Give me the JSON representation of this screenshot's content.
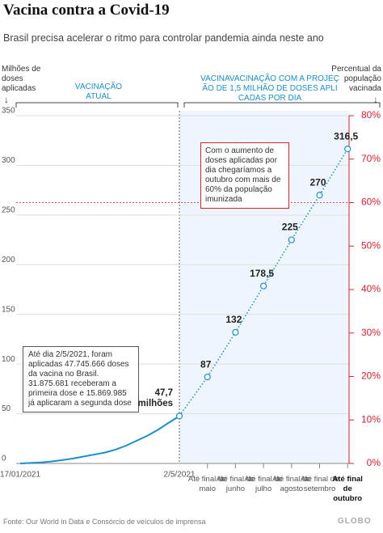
{
  "chart_data": {
    "type": "line",
    "title": "Vacina contra a Covid-19",
    "subtitle": "Brasil precisa acelerar o ritmo para controlar pandemia ainda neste ano",
    "y_label": "Milhões de doses aplicadas",
    "y2_label": "Percentual da população vacinada",
    "sections": [
      "VACINAÇÃO ATUAL",
      "VACINAVACINAÇÃO COM A PROJEÇÃO DE 1,5 MILHÃO DE DOSES APLICADAS POR DIA"
    ],
    "categories": [
      "17/01/2021",
      null,
      null,
      null,
      null,
      null,
      null,
      null,
      null,
      null,
      null,
      null,
      null,
      null,
      null,
      "2/5/2021",
      "Até final de maio",
      "Até final de junho",
      "Até final de julho",
      "Até final de agosto",
      "Até final de setembro",
      "Até final de outubro"
    ],
    "series": [
      {
        "color": "#1a8fc9",
        "style": "solid",
        "values": [
          0,
          0.5,
          1,
          2,
          3.5,
          5,
          7,
          9,
          11,
          14,
          18,
          23,
          28,
          34,
          41,
          47.7,
          null,
          null,
          null,
          null,
          null,
          null
        ]
      },
      {
        "color": "#1a8fc9",
        "style": "dotted",
        "values": [
          null,
          null,
          null,
          null,
          null,
          null,
          null,
          null,
          null,
          null,
          null,
          null,
          null,
          null,
          null,
          47.7,
          87,
          132,
          178.5,
          225,
          270,
          316.5
        ],
        "value_labels": [
          null,
          null,
          null,
          null,
          null,
          null,
          null,
          null,
          null,
          null,
          null,
          null,
          null,
          null,
          null,
          "47,7 milhões",
          "87",
          "132",
          "178,5",
          "225",
          "270",
          "316,5"
        ]
      }
    ],
    "ylim": [
      0,
      350
    ],
    "yticks": [
      0,
      50,
      100,
      150,
      200,
      250,
      300,
      350
    ],
    "y2lim": [
      0,
      80
    ],
    "y2ticks": [
      {
        "value": 0,
        "label": "0%"
      },
      {
        "value": 10,
        "label": "10%"
      },
      {
        "value": 20,
        "label": "20%"
      },
      {
        "value": 30,
        "label": "30%"
      },
      {
        "value": 40,
        "label": "40%"
      },
      {
        "value": 50,
        "label": "50%"
      },
      {
        "value": 60,
        "label": "60%"
      },
      {
        "value": 70,
        "label": "70%"
      },
      {
        "value": 80,
        "label": "80%"
      }
    ],
    "y2_color": "#d6202e",
    "reference_line": {
      "axis": "y2",
      "value": 60
    },
    "grid": true,
    "annotations": [
      "Até dia 2/5/2021, foram aplicadas 47.745.666 doses da vacina no Brasil. 31.875.681 receberam a primeira dose e 15.869.985 já aplicaram a segunda dose",
      "Com o aumento de doses aplicadas por dia chegaríamos a outubro com mais de 60% da população imunizada"
    ],
    "source": "Fonte: Our World in Data e Consórcio de veículos de imprensa",
    "logo": "GLOBO"
  }
}
